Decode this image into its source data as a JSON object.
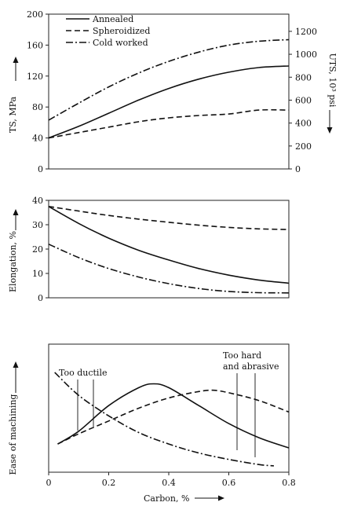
{
  "line_styles": {
    "annealed": "solid",
    "spheroidized": "dashed",
    "cold_worked": "dash-dot"
  },
  "chart_data": [
    {
      "type": "line",
      "panel": "strength",
      "title": "",
      "x_tick_labels": [],
      "xlim": [
        0,
        0.8
      ],
      "ylabel": "TS, MPa",
      "y_ticks": [
        0,
        40,
        80,
        120,
        160,
        200
      ],
      "ylim": [
        0,
        200
      ],
      "y2label": "UTS, 10³ psi",
      "y2_ticks": [
        0,
        200,
        400,
        600,
        800,
        1000,
        1200
      ],
      "y2lim": [
        0,
        1350
      ],
      "grid": false,
      "legend_position": "top-left",
      "legend": [
        "Annealed",
        "Spheroidized",
        "Cold worked"
      ],
      "x": [
        0,
        0.1,
        0.2,
        0.3,
        0.4,
        0.5,
        0.6,
        0.7,
        0.8
      ],
      "series": [
        {
          "name": "Annealed",
          "key": "annealed",
          "values": [
            40,
            55,
            72,
            89,
            104,
            116,
            125,
            131,
            133
          ]
        },
        {
          "name": "Spheroidized",
          "key": "spheroidized",
          "values": [
            40,
            47,
            54,
            61,
            66,
            69,
            71,
            76,
            76
          ]
        },
        {
          "name": "Cold worked",
          "key": "cold_worked",
          "values": [
            63,
            85,
            106,
            124,
            139,
            151,
            160,
            165,
            167
          ]
        }
      ]
    },
    {
      "type": "line",
      "panel": "elongation",
      "title": "",
      "x_tick_labels": [],
      "xlim": [
        0,
        0.8
      ],
      "ylabel": "Elongation, %",
      "y_ticks": [
        0,
        10,
        20,
        30,
        40
      ],
      "ylim": [
        0,
        40
      ],
      "grid": false,
      "x": [
        0,
        0.1,
        0.2,
        0.3,
        0.4,
        0.5,
        0.6,
        0.7,
        0.8
      ],
      "series": [
        {
          "name": "Annealed",
          "key": "annealed",
          "values": [
            37.5,
            30.5,
            24.5,
            19.5,
            15.5,
            12,
            9.3,
            7.3,
            6
          ]
        },
        {
          "name": "Spheroidized",
          "key": "spheroidized",
          "values": [
            37.5,
            35.6,
            33.8,
            32.3,
            31,
            29.8,
            28.9,
            28.3,
            28
          ]
        },
        {
          "name": "Cold worked",
          "key": "cold_worked",
          "values": [
            22,
            16.5,
            12,
            8.5,
            5.8,
            3.8,
            2.6,
            2.1,
            2
          ]
        }
      ]
    },
    {
      "type": "line",
      "panel": "machinability",
      "title": "",
      "xlabel": "Carbon, %",
      "x_ticks": [
        0,
        0.2,
        0.4,
        0.6,
        0.8
      ],
      "x_tick_labels": [
        "0",
        "0.2",
        "0.4",
        "0.6",
        "0.8"
      ],
      "xlim": [
        0,
        0.8
      ],
      "ylabel": "Ease of machining",
      "ylim": [
        0,
        1
      ],
      "grid": false,
      "annotations": {
        "too_ductile": "Too ductile",
        "too_hard_line1": "Too hard",
        "too_hard_line2": "and abrasive"
      },
      "series": [
        {
          "name": "Annealed",
          "key": "annealed",
          "x": [
            0.03,
            0.1,
            0.2,
            0.3,
            0.35,
            0.4,
            0.5,
            0.6,
            0.7,
            0.8
          ],
          "values": [
            0.22,
            0.32,
            0.52,
            0.66,
            0.69,
            0.66,
            0.52,
            0.38,
            0.27,
            0.19
          ]
        },
        {
          "name": "Spheroidized",
          "key": "spheroidized",
          "x": [
            0.03,
            0.1,
            0.2,
            0.3,
            0.4,
            0.5,
            0.55,
            0.6,
            0.7,
            0.8
          ],
          "values": [
            0.22,
            0.3,
            0.4,
            0.5,
            0.58,
            0.63,
            0.64,
            0.62,
            0.56,
            0.47
          ]
        },
        {
          "name": "Cold worked",
          "key": "cold_worked",
          "x": [
            0.02,
            0.1,
            0.2,
            0.3,
            0.4,
            0.5,
            0.6,
            0.7,
            0.75
          ],
          "values": [
            0.78,
            0.6,
            0.44,
            0.31,
            0.22,
            0.15,
            0.1,
            0.06,
            0.05
          ]
        }
      ]
    }
  ]
}
